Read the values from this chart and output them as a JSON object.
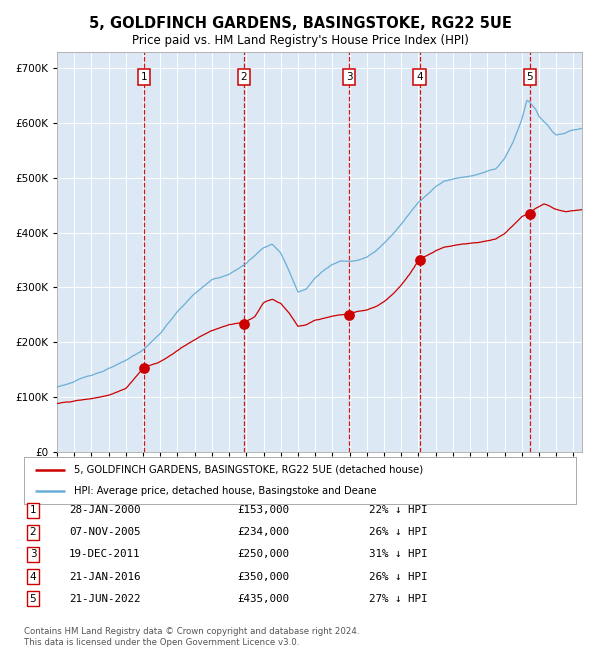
{
  "title": "5, GOLDFINCH GARDENS, BASINGSTOKE, RG22 5UE",
  "subtitle": "Price paid vs. HM Land Registry's House Price Index (HPI)",
  "background_color": "#ffffff",
  "plot_bg_color": "#dce9f5",
  "grid_color": "#ffffff",
  "ylim": [
    0,
    730000
  ],
  "yticks": [
    0,
    100000,
    200000,
    300000,
    400000,
    500000,
    600000,
    700000
  ],
  "ytick_labels": [
    "£0",
    "£100K",
    "£200K",
    "£300K",
    "£400K",
    "£500K",
    "£600K",
    "£700K"
  ],
  "sale_years_decimal": [
    2000.07,
    2005.85,
    2011.97,
    2016.06,
    2022.47
  ],
  "sale_prices": [
    153000,
    234000,
    250000,
    350000,
    435000
  ],
  "sale_labels": [
    "1",
    "2",
    "3",
    "4",
    "5"
  ],
  "hpi_color": "#6baed6",
  "sale_line_color": "#cc0000",
  "vline_color": "#cc0000",
  "marker_color": "#cc0000",
  "legend_line1": "5, GOLDFINCH GARDENS, BASINGSTOKE, RG22 5UE (detached house)",
  "legend_line2": "HPI: Average price, detached house, Basingstoke and Deane",
  "table_rows": [
    [
      "1",
      "28-JAN-2000",
      "£153,000",
      "22% ↓ HPI"
    ],
    [
      "2",
      "07-NOV-2005",
      "£234,000",
      "26% ↓ HPI"
    ],
    [
      "3",
      "19-DEC-2011",
      "£250,000",
      "31% ↓ HPI"
    ],
    [
      "4",
      "21-JAN-2016",
      "£350,000",
      "26% ↓ HPI"
    ],
    [
      "5",
      "21-JUN-2022",
      "£435,000",
      "27% ↓ HPI"
    ]
  ],
  "footer": "Contains HM Land Registry data © Crown copyright and database right 2024.\nThis data is licensed under the Open Government Licence v3.0.",
  "xmin": 1995,
  "xmax": 2025.5,
  "hpi_keypoints": [
    [
      1995.0,
      118000
    ],
    [
      1996.0,
      128000
    ],
    [
      1997.0,
      140000
    ],
    [
      1998.0,
      152000
    ],
    [
      1999.0,
      165000
    ],
    [
      2000.0,
      185000
    ],
    [
      2001.0,
      215000
    ],
    [
      2002.0,
      255000
    ],
    [
      2003.0,
      288000
    ],
    [
      2004.0,
      312000
    ],
    [
      2005.0,
      322000
    ],
    [
      2006.0,
      342000
    ],
    [
      2007.0,
      372000
    ],
    [
      2007.5,
      378000
    ],
    [
      2008.0,
      362000
    ],
    [
      2008.5,
      328000
    ],
    [
      2009.0,
      292000
    ],
    [
      2009.5,
      298000
    ],
    [
      2010.0,
      318000
    ],
    [
      2010.5,
      332000
    ],
    [
      2011.0,
      342000
    ],
    [
      2011.5,
      348000
    ],
    [
      2012.0,
      348000
    ],
    [
      2012.5,
      352000
    ],
    [
      2013.0,
      358000
    ],
    [
      2013.5,
      368000
    ],
    [
      2014.0,
      382000
    ],
    [
      2014.5,
      398000
    ],
    [
      2015.0,
      418000
    ],
    [
      2015.5,
      438000
    ],
    [
      2016.0,
      458000
    ],
    [
      2016.5,
      472000
    ],
    [
      2017.0,
      488000
    ],
    [
      2017.5,
      498000
    ],
    [
      2018.0,
      502000
    ],
    [
      2018.5,
      506000
    ],
    [
      2019.0,
      508000
    ],
    [
      2019.5,
      512000
    ],
    [
      2020.0,
      518000
    ],
    [
      2020.5,
      522000
    ],
    [
      2021.0,
      542000
    ],
    [
      2021.5,
      572000
    ],
    [
      2022.0,
      612000
    ],
    [
      2022.3,
      648000
    ],
    [
      2022.5,
      642000
    ],
    [
      2022.8,
      632000
    ],
    [
      2023.0,
      618000
    ],
    [
      2023.3,
      608000
    ],
    [
      2023.5,
      602000
    ],
    [
      2023.8,
      588000
    ],
    [
      2024.0,
      582000
    ],
    [
      2024.3,
      585000
    ],
    [
      2024.6,
      588000
    ],
    [
      2025.0,
      592000
    ],
    [
      2025.5,
      595000
    ]
  ],
  "red_keypoints": [
    [
      1995.0,
      88000
    ],
    [
      1996.0,
      92000
    ],
    [
      1997.0,
      96000
    ],
    [
      1998.0,
      102000
    ],
    [
      1999.0,
      115000
    ],
    [
      2000.07,
      153000
    ],
    [
      2001.0,
      162000
    ],
    [
      2002.0,
      182000
    ],
    [
      2003.0,
      202000
    ],
    [
      2004.0,
      218000
    ],
    [
      2005.0,
      230000
    ],
    [
      2005.85,
      234000
    ],
    [
      2006.0,
      236000
    ],
    [
      2006.5,
      246000
    ],
    [
      2007.0,
      272000
    ],
    [
      2007.5,
      278000
    ],
    [
      2008.0,
      270000
    ],
    [
      2008.5,
      252000
    ],
    [
      2009.0,
      228000
    ],
    [
      2009.5,
      230000
    ],
    [
      2010.0,
      238000
    ],
    [
      2010.5,
      242000
    ],
    [
      2011.0,
      246000
    ],
    [
      2011.97,
      250000
    ],
    [
      2012.0,
      251000
    ],
    [
      2012.5,
      254000
    ],
    [
      2013.0,
      256000
    ],
    [
      2013.5,
      262000
    ],
    [
      2014.0,
      272000
    ],
    [
      2014.5,
      285000
    ],
    [
      2015.0,
      302000
    ],
    [
      2015.5,
      322000
    ],
    [
      2016.06,
      350000
    ],
    [
      2016.5,
      356000
    ],
    [
      2017.0,
      365000
    ],
    [
      2017.5,
      372000
    ],
    [
      2018.0,
      375000
    ],
    [
      2018.5,
      378000
    ],
    [
      2019.0,
      380000
    ],
    [
      2019.5,
      382000
    ],
    [
      2020.0,
      385000
    ],
    [
      2020.5,
      388000
    ],
    [
      2021.0,
      398000
    ],
    [
      2021.5,
      412000
    ],
    [
      2022.0,
      428000
    ],
    [
      2022.47,
      435000
    ],
    [
      2022.6,
      438000
    ],
    [
      2022.8,
      442000
    ],
    [
      2023.0,
      445000
    ],
    [
      2023.3,
      450000
    ],
    [
      2023.5,
      448000
    ],
    [
      2023.8,
      443000
    ],
    [
      2024.0,
      440000
    ],
    [
      2024.3,
      438000
    ],
    [
      2024.6,
      436000
    ],
    [
      2025.0,
      438000
    ],
    [
      2025.5,
      440000
    ]
  ]
}
